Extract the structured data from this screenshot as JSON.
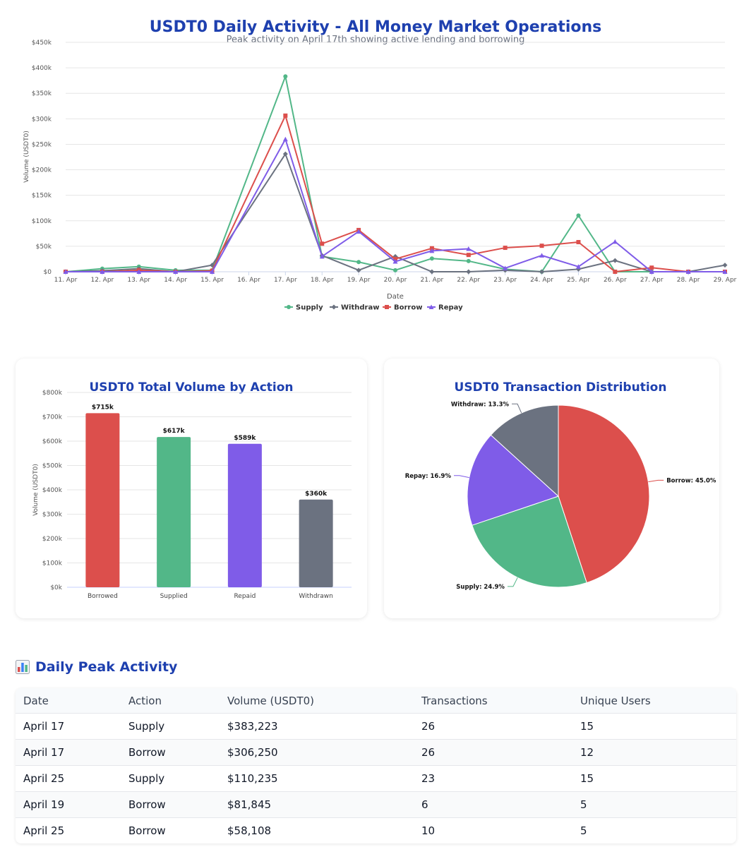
{
  "chart_data": [
    {
      "type": "line",
      "title": "USDT0 Daily Activity - All Money Market Operations",
      "subtitle": "Peak activity on April 17th showing active lending and borrowing",
      "xlabel": "Date",
      "ylabel": "Volume (USDT0)",
      "ylim": [
        0,
        450000
      ],
      "y_ticks": [
        "$0",
        "$50k",
        "$100k",
        "$150k",
        "$200k",
        "$250k",
        "$300k",
        "$350k",
        "$400k",
        "$450k"
      ],
      "categories": [
        "11. Apr",
        "12. Apr",
        "13. Apr",
        "14. Apr",
        "15. Apr",
        "16. Apr",
        "17. Apr",
        "18. Apr",
        "19. Apr",
        "20. Apr",
        "21. Apr",
        "22. Apr",
        "23. Apr",
        "24. Apr",
        "25. Apr",
        "26. Apr",
        "27. Apr",
        "28. Apr",
        "29. Apr"
      ],
      "legend_position": "bottom",
      "series": [
        {
          "name": "Supply",
          "color": "#52b788",
          "marker": "circle",
          "values": [
            0,
            6000,
            10000,
            3000,
            3000,
            null,
            383223,
            30000,
            19000,
            3000,
            26000,
            21000,
            5000,
            0,
            110235,
            0,
            0,
            0,
            0
          ]
        },
        {
          "name": "Withdraw",
          "color": "#6b7280",
          "marker": "diamond",
          "values": [
            0,
            2000,
            6000,
            0,
            13000,
            null,
            231000,
            32000,
            3000,
            30000,
            0,
            0,
            3000,
            0,
            5000,
            22000,
            0,
            0,
            13000
          ]
        },
        {
          "name": "Borrow",
          "color": "#dc4f4c",
          "marker": "square",
          "values": [
            0,
            0,
            3000,
            0,
            2000,
            null,
            306250,
            55000,
            81845,
            25000,
            46000,
            33000,
            47000,
            51000,
            58108,
            0,
            8000,
            0,
            0
          ]
        },
        {
          "name": "Repay",
          "color": "#7f5ce8",
          "marker": "triangle",
          "values": [
            0,
            0,
            0,
            0,
            0,
            null,
            260000,
            30000,
            79000,
            20000,
            41000,
            45000,
            7000,
            32000,
            10000,
            59000,
            0,
            0,
            0
          ]
        }
      ]
    },
    {
      "type": "bar",
      "title": "USDT0 Total Volume by Action",
      "ylabel": "Volume (USDT0)",
      "ylim": [
        0,
        800000
      ],
      "y_ticks": [
        "$0k",
        "$100k",
        "$200k",
        "$300k",
        "$400k",
        "$500k",
        "$600k",
        "$700k",
        "$800k"
      ],
      "categories": [
        "Borrowed",
        "Supplied",
        "Repaid",
        "Withdrawn"
      ],
      "values": [
        715000,
        617000,
        589000,
        360000
      ],
      "labels": [
        "$715k",
        "$617k",
        "$589k",
        "$360k"
      ],
      "colors": [
        "#dc4f4c",
        "#52b788",
        "#7f5ce8",
        "#6b7280"
      ]
    },
    {
      "type": "pie",
      "title": "USDT0 Transaction Distribution",
      "slices": [
        {
          "name": "Borrow",
          "value": 45.0,
          "label": "Borrow: 45.0%",
          "color": "#dc4f4c"
        },
        {
          "name": "Supply",
          "value": 24.9,
          "label": "Supply: 24.9%",
          "color": "#52b788"
        },
        {
          "name": "Repay",
          "value": 16.9,
          "label": "Repay: 16.9%",
          "color": "#7f5ce8"
        },
        {
          "name": "Withdraw",
          "value": 13.3,
          "label": "Withdraw: 13.3%",
          "color": "#6b7280"
        }
      ]
    }
  ],
  "peak_section": {
    "icon": "bar-chart-icon",
    "title": "Daily Peak Activity",
    "headers": [
      "Date",
      "Action",
      "Volume (USDT0)",
      "Transactions",
      "Unique Users"
    ],
    "rows": [
      [
        "April 17",
        "Supply",
        "$383,223",
        "26",
        "15"
      ],
      [
        "April 17",
        "Borrow",
        "$306,250",
        "26",
        "12"
      ],
      [
        "April 25",
        "Supply",
        "$110,235",
        "23",
        "15"
      ],
      [
        "April 19",
        "Borrow",
        "$81,845",
        "6",
        "5"
      ],
      [
        "April 25",
        "Borrow",
        "$58,108",
        "10",
        "5"
      ]
    ]
  }
}
